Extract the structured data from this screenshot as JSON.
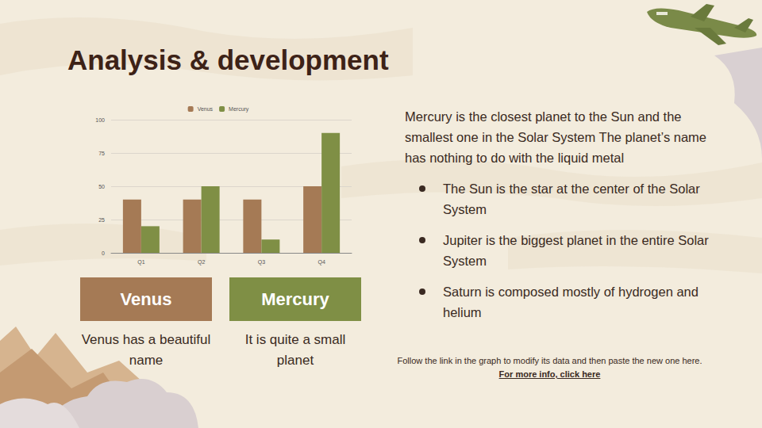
{
  "chart_data": {
    "type": "bar",
    "categories": [
      "Q1",
      "Q2",
      "Q3",
      "Q4"
    ],
    "series": [
      {
        "name": "Venus",
        "color": "#a57a55",
        "values": [
          40,
          40,
          40,
          50
        ]
      },
      {
        "name": "Mercury",
        "color": "#7f8f45",
        "values": [
          20,
          50,
          10,
          90
        ]
      }
    ],
    "ylim": [
      0,
      100
    ],
    "yticks": [
      0,
      25,
      50,
      75,
      100
    ],
    "grid": true,
    "legend": "top"
  },
  "slide": {
    "title": "Analysis & development",
    "boxes": [
      {
        "label": "Venus",
        "color": "#a57a55",
        "text": "Venus has a beautiful name"
      },
      {
        "label": "Mercury",
        "color": "#7f8f45",
        "text": "It is quite a small planet"
      }
    ],
    "paragraph": "Mercury is the closest planet to the Sun and the smallest one in the Solar System The planet’s name has nothing to do with the liquid metal",
    "bullets": [
      "The Sun is the star at the center of the Solar System",
      "Jupiter is the biggest planet in the entire Solar System",
      "Saturn is composed mostly of hydrogen and helium"
    ],
    "footer_text": "Follow the link in the graph to modify its data and then paste the new one here. ",
    "footer_link": "For more info, click here"
  }
}
